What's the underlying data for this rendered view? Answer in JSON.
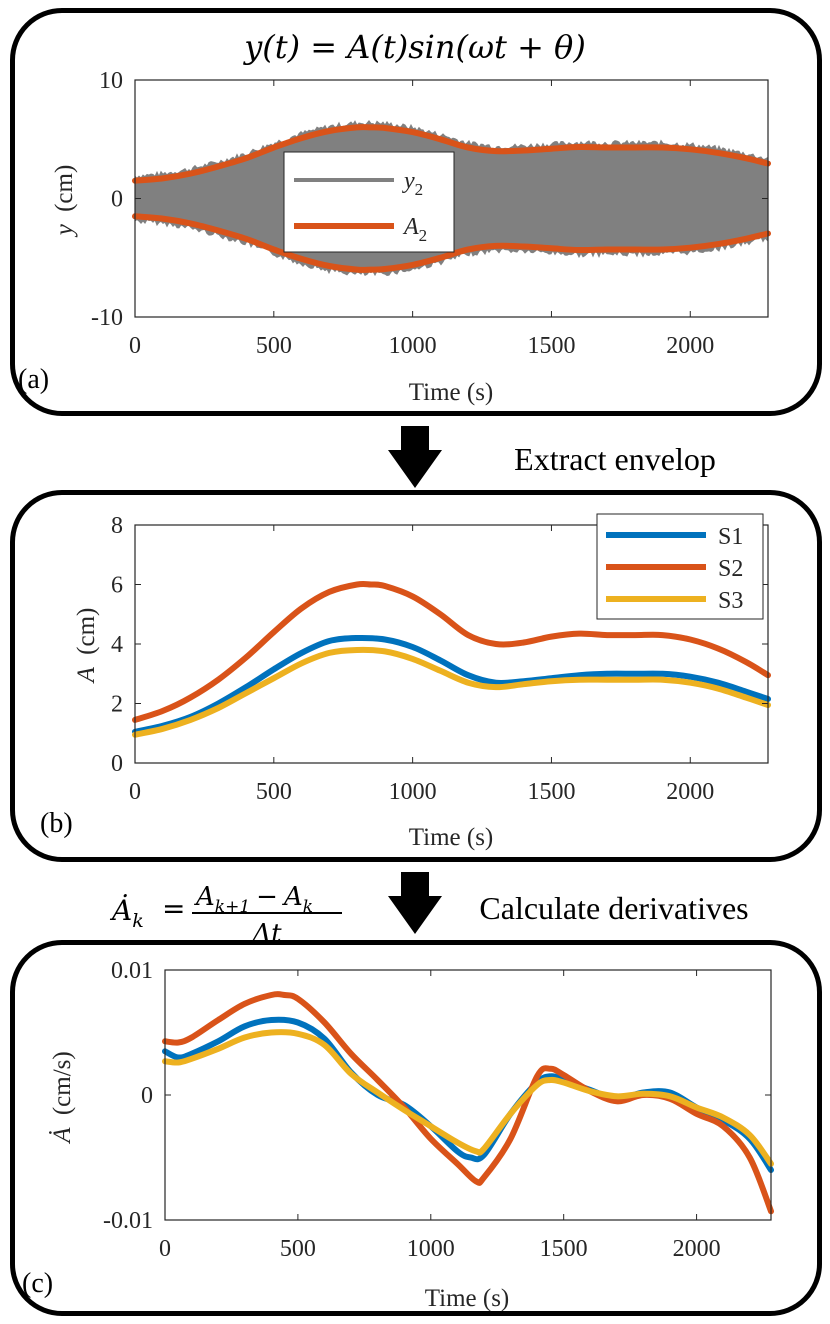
{
  "flow": {
    "step1": "Extract envelop",
    "step2": "Calculate derivatives",
    "derivative_formula": {
      "lhs": "Ȧ",
      "lhs_sub": "k",
      "eq": "=",
      "num": "A",
      "num_sub1": "k+1",
      "minus": "−",
      "num2": "A",
      "num_sub2": "k",
      "den": "Δt"
    }
  },
  "colors": {
    "signal": "#808080",
    "S1": "#0072BD",
    "S2": "#D95319",
    "S3": "#EDB120"
  },
  "chart_data": [
    {
      "panel": "(a)",
      "type": "line",
      "title": "y(t) = A(t)sin(ωt + θ)",
      "xlabel": "Time (s)",
      "ylabel_var": "y",
      "ylabel_unit": "(cm)",
      "xlim": [
        0,
        2280
      ],
      "ylim": [
        -10,
        10
      ],
      "xticks": [
        0,
        500,
        1000,
        1500,
        2000
      ],
      "yticks": [
        10,
        0,
        -10
      ],
      "ytick_labels": [
        "10",
        "0",
        "-10"
      ],
      "legend": {
        "position": "center",
        "entries": [
          {
            "name": "y",
            "sub": "2",
            "color_key": "signal"
          },
          {
            "name": "A",
            "sub": "2",
            "color_key": "S2"
          }
        ]
      },
      "series": [
        {
          "name": "A2",
          "color_key": "S2",
          "x": [
            0,
            100,
            200,
            300,
            400,
            500,
            600,
            700,
            800,
            850,
            900,
            1000,
            1100,
            1200,
            1300,
            1400,
            1500,
            1600,
            1700,
            1800,
            1900,
            2000,
            2100,
            2200,
            2280
          ],
          "values": [
            1.5,
            1.7,
            2.1,
            2.7,
            3.4,
            4.3,
            5.1,
            5.7,
            6.0,
            6.0,
            5.95,
            5.6,
            5.0,
            4.3,
            4.0,
            4.05,
            4.2,
            4.35,
            4.3,
            4.3,
            4.3,
            4.15,
            3.85,
            3.4,
            2.95
          ]
        }
      ]
    },
    {
      "panel": "(b)",
      "type": "line",
      "xlabel": "Time (s)",
      "ylabel_var": "A",
      "ylabel_unit": "(cm)",
      "xlim": [
        0,
        2280
      ],
      "ylim": [
        0,
        8
      ],
      "xticks": [
        0,
        500,
        1000,
        1500,
        2000
      ],
      "yticks": [
        0,
        2,
        4,
        6,
        8
      ],
      "legend": {
        "position": "top-right",
        "entries": [
          "S1",
          "S2",
          "S3"
        ]
      },
      "series": [
        {
          "name": "S1",
          "color_key": "S1",
          "x": [
            0,
            100,
            200,
            300,
            400,
            500,
            600,
            700,
            800,
            900,
            1000,
            1100,
            1200,
            1300,
            1400,
            1500,
            1600,
            1700,
            1800,
            1900,
            2000,
            2100,
            2200,
            2280
          ],
          "values": [
            1.05,
            1.25,
            1.55,
            2.0,
            2.55,
            3.15,
            3.7,
            4.1,
            4.2,
            4.15,
            3.9,
            3.45,
            2.95,
            2.7,
            2.75,
            2.85,
            2.95,
            3.0,
            3.0,
            3.0,
            2.9,
            2.7,
            2.4,
            2.15
          ]
        },
        {
          "name": "S2",
          "color_key": "S2",
          "x": [
            0,
            100,
            200,
            300,
            400,
            500,
            600,
            700,
            800,
            850,
            900,
            1000,
            1100,
            1200,
            1300,
            1400,
            1500,
            1600,
            1700,
            1800,
            1900,
            2000,
            2100,
            2200,
            2280
          ],
          "values": [
            1.45,
            1.75,
            2.2,
            2.8,
            3.55,
            4.4,
            5.2,
            5.75,
            6.0,
            6.0,
            5.95,
            5.6,
            5.0,
            4.3,
            4.0,
            4.05,
            4.25,
            4.35,
            4.3,
            4.3,
            4.3,
            4.15,
            3.85,
            3.4,
            2.95
          ]
        },
        {
          "name": "S3",
          "color_key": "S3",
          "x": [
            0,
            100,
            200,
            300,
            400,
            500,
            600,
            700,
            800,
            900,
            1000,
            1100,
            1200,
            1300,
            1400,
            1500,
            1600,
            1700,
            1800,
            1900,
            2000,
            2100,
            2200,
            2280
          ],
          "values": [
            0.95,
            1.15,
            1.45,
            1.85,
            2.35,
            2.85,
            3.35,
            3.7,
            3.8,
            3.75,
            3.5,
            3.1,
            2.7,
            2.55,
            2.65,
            2.75,
            2.8,
            2.8,
            2.8,
            2.8,
            2.7,
            2.5,
            2.2,
            1.95
          ]
        }
      ]
    },
    {
      "panel": "(c)",
      "type": "line",
      "xlabel": "Time (s)",
      "ylabel_var": "Ȧ",
      "ylabel_unit": "(cm/s)",
      "xlim": [
        0,
        2280
      ],
      "ylim": [
        -0.01,
        0.01
      ],
      "xticks": [
        0,
        500,
        1000,
        1500,
        2000
      ],
      "yticks": [
        0.01,
        0,
        -0.01
      ],
      "ytick_labels": [
        "0.01",
        "0",
        "-0.01"
      ],
      "series": [
        {
          "name": "S1",
          "color_key": "S1",
          "x": [
            0,
            50,
            100,
            200,
            300,
            400,
            500,
            600,
            700,
            800,
            900,
            1000,
            1100,
            1150,
            1200,
            1300,
            1400,
            1450,
            1500,
            1600,
            1700,
            1800,
            1900,
            2000,
            2100,
            2200,
            2280
          ],
          "values": [
            0.0035,
            0.003,
            0.0033,
            0.0043,
            0.0055,
            0.006,
            0.0058,
            0.0045,
            0.0018,
            0.0,
            -0.0008,
            -0.0025,
            -0.0045,
            -0.005,
            -0.0048,
            -0.0015,
            0.001,
            0.0015,
            0.0012,
            0.0004,
            -0.0003,
            0.0002,
            0.0002,
            -0.001,
            -0.002,
            -0.0035,
            -0.006
          ]
        },
        {
          "name": "S2",
          "color_key": "S2",
          "x": [
            0,
            50,
            100,
            200,
            300,
            400,
            450,
            500,
            600,
            700,
            800,
            900,
            1000,
            1100,
            1170,
            1200,
            1300,
            1400,
            1450,
            1500,
            1600,
            1700,
            1800,
            1900,
            2000,
            2100,
            2200,
            2280
          ],
          "values": [
            0.0043,
            0.0042,
            0.0046,
            0.006,
            0.0073,
            0.008,
            0.008,
            0.0077,
            0.0058,
            0.0033,
            0.0012,
            -0.001,
            -0.0035,
            -0.0055,
            -0.0069,
            -0.0066,
            -0.0035,
            0.0015,
            0.0021,
            0.0016,
            0.0003,
            -0.0005,
            0.0,
            -0.0003,
            -0.0015,
            -0.0025,
            -0.005,
            -0.0093
          ]
        },
        {
          "name": "S3",
          "color_key": "S3",
          "x": [
            0,
            50,
            100,
            200,
            300,
            400,
            500,
            600,
            700,
            800,
            900,
            1000,
            1100,
            1170,
            1200,
            1300,
            1400,
            1450,
            1500,
            1600,
            1700,
            1800,
            1900,
            2000,
            2100,
            2200,
            2280
          ],
          "values": [
            0.0027,
            0.0026,
            0.0029,
            0.0037,
            0.0046,
            0.005,
            0.0049,
            0.004,
            0.0017,
            0.0002,
            -0.0012,
            -0.0025,
            -0.0038,
            -0.0045,
            -0.0043,
            -0.0015,
            0.0008,
            0.0012,
            0.001,
            0.0003,
            -0.0001,
            0.0001,
            -0.0001,
            -0.001,
            -0.0018,
            -0.0032,
            -0.0055
          ]
        }
      ]
    }
  ]
}
